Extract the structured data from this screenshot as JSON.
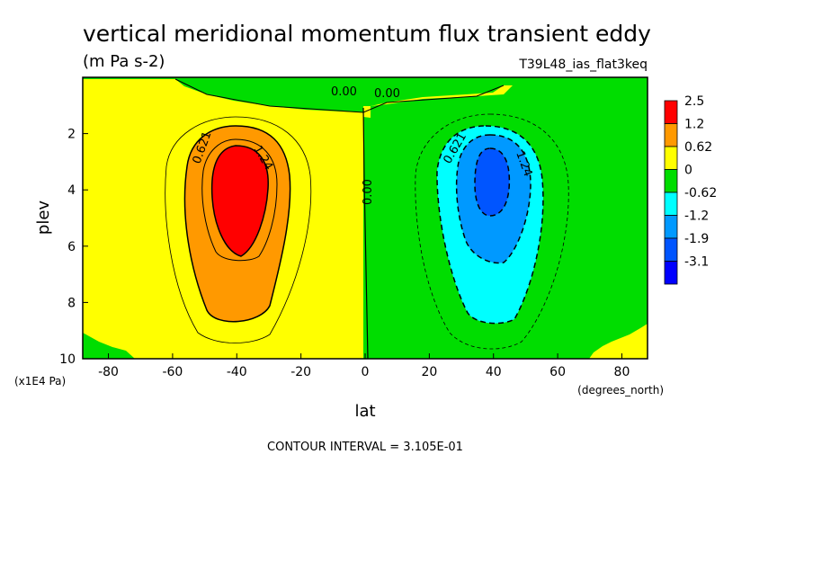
{
  "chart_data": {
    "type": "heatmap",
    "title": "vertical meridional momentum flux transient eddy",
    "subtitle": "(m Pa s-2)",
    "run_label": "T39L48_ias_flat3keq",
    "xlabel": "lat",
    "x_units": "(degrees_north)",
    "ylabel": "plev",
    "y_units": "(x1E4 Pa)",
    "xlim": [
      -88,
      88
    ],
    "ylim": [
      10,
      0
    ],
    "x_ticks": [
      -80,
      -60,
      -40,
      -20,
      0,
      20,
      40,
      60,
      80
    ],
    "y_ticks": [
      2,
      4,
      6,
      8,
      10
    ],
    "x_tick_labels": [
      "-80",
      "-60",
      "-40",
      "-20",
      "0",
      "20",
      "40",
      "60",
      "80"
    ],
    "y_tick_labels": [
      "2",
      "4",
      "6",
      "8",
      "10"
    ],
    "legend": {
      "position": "right",
      "levels": [
        "2.5",
        "1.2",
        "0.62",
        "0",
        "-0.62",
        "-1.2",
        "-1.9",
        "-3.1"
      ],
      "colors": [
        "#ff0000",
        "#ff9900",
        "#ffff00",
        "#00dd00",
        "#00ffff",
        "#0099ff",
        "#0055ff",
        "#0000ff"
      ]
    },
    "contour_labels": [
      "0.621",
      "1.24",
      "0.00",
      "0.00",
      "0.00",
      "0.621",
      "1.24"
    ],
    "contour_interval_text": "CONTOUR INTERVAL = 3.105E-01",
    "features": [
      {
        "sign": "positive",
        "center_lat": -40,
        "center_plev": 4,
        "peak": 2.5
      },
      {
        "sign": "negative",
        "center_lat": 40,
        "center_plev": 3.8,
        "peak": -2.5
      }
    ]
  }
}
